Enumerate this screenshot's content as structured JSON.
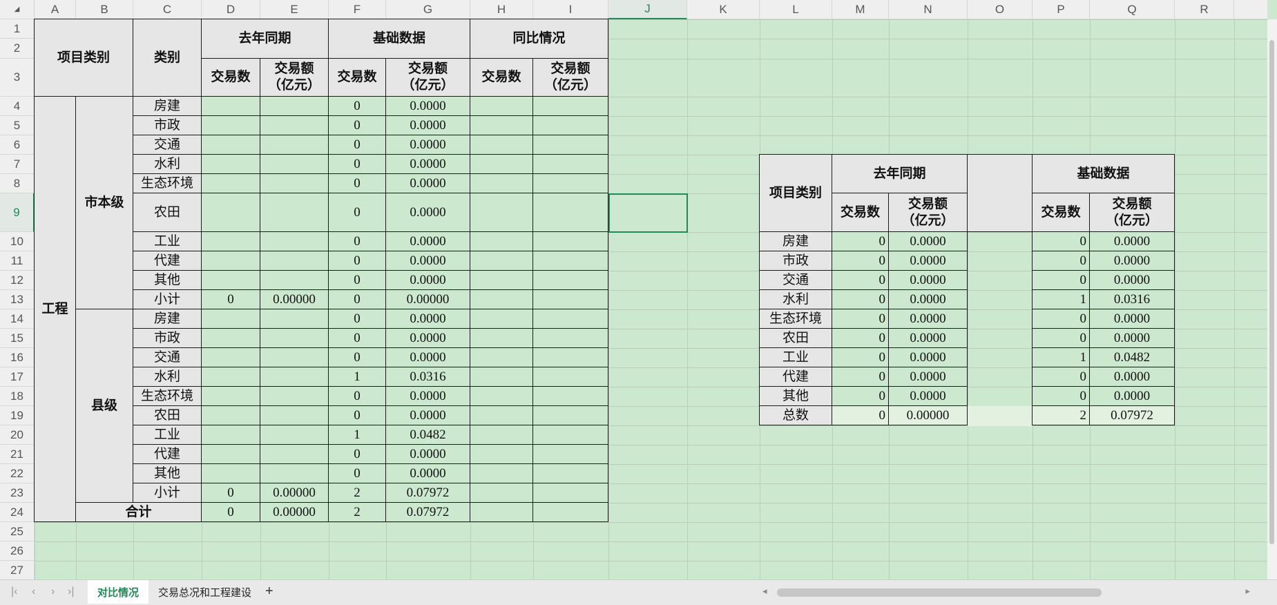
{
  "sheet": {
    "columns": [
      "A",
      "B",
      "C",
      "D",
      "E",
      "F",
      "G",
      "H",
      "I",
      "J",
      "K",
      "L",
      "M",
      "N",
      "O",
      "P",
      "Q",
      "R"
    ],
    "row_count": 27,
    "selected_cell": "J9",
    "accent_color": "#1f8a56",
    "cell_fill": "#cce8cf",
    "header_fill": "#e6e6e6",
    "cells": [
      {
        "r": "A1:B3",
        "v": "项目类别",
        "s": "hdr"
      },
      {
        "r": "C1:C3",
        "v": "类别",
        "s": "hdr"
      },
      {
        "r": "D1:E2",
        "v": "去年同期",
        "s": "hdr"
      },
      {
        "r": "F1:G2",
        "v": "基础数据",
        "s": "hdr"
      },
      {
        "r": "H1:I2",
        "v": "同比情况",
        "s": "hdr"
      },
      {
        "r": "D3",
        "v": "交易数",
        "s": "hdr"
      },
      {
        "r": "E3",
        "v": "交易额\n（亿元）",
        "s": "hdr"
      },
      {
        "r": "F3",
        "v": "交易数",
        "s": "hdr"
      },
      {
        "r": "G3",
        "v": "交易额\n（亿元）",
        "s": "hdr"
      },
      {
        "r": "H3",
        "v": "交易数",
        "s": "hdr"
      },
      {
        "r": "I3",
        "v": "交易额\n（亿元）",
        "s": "hdr"
      },
      {
        "r": "A4:A24",
        "v": "工程",
        "s": "hdr"
      },
      {
        "r": "B4:B13",
        "v": "市本级",
        "s": "hdr"
      },
      {
        "r": "B14:B23",
        "v": "县级",
        "s": "hdr"
      },
      {
        "r": "B24:C24",
        "v": "合计",
        "s": "hdr"
      },
      {
        "r": "C4",
        "v": "房建",
        "s": "lbl"
      },
      {
        "r": "C5",
        "v": "市政",
        "s": "lbl"
      },
      {
        "r": "C6",
        "v": "交通",
        "s": "lbl"
      },
      {
        "r": "C7",
        "v": "水利",
        "s": "lbl"
      },
      {
        "r": "C8",
        "v": "生态环境",
        "s": "lbl"
      },
      {
        "r": "C9",
        "v": "农田",
        "s": "lbl"
      },
      {
        "r": "C10",
        "v": "工业",
        "s": "lbl"
      },
      {
        "r": "C11",
        "v": "代建",
        "s": "lbl"
      },
      {
        "r": "C12",
        "v": "其他",
        "s": "lbl"
      },
      {
        "r": "C13",
        "v": "小计",
        "s": "lbl"
      },
      {
        "r": "C14",
        "v": "房建",
        "s": "lbl"
      },
      {
        "r": "C15",
        "v": "市政",
        "s": "lbl"
      },
      {
        "r": "C16",
        "v": "交通",
        "s": "lbl"
      },
      {
        "r": "C17",
        "v": "水利",
        "s": "lbl"
      },
      {
        "r": "C18",
        "v": "生态环境",
        "s": "lbl"
      },
      {
        "r": "C19",
        "v": "农田",
        "s": "lbl"
      },
      {
        "r": "C20",
        "v": "工业",
        "s": "lbl"
      },
      {
        "r": "C21",
        "v": "代建",
        "s": "lbl"
      },
      {
        "r": "C22",
        "v": "其他",
        "s": "lbl"
      },
      {
        "r": "C23",
        "v": "小计",
        "s": "lbl"
      },
      {
        "r": "F4",
        "v": "0"
      },
      {
        "r": "G4",
        "v": "0.0000"
      },
      {
        "r": "F5",
        "v": "0"
      },
      {
        "r": "G5",
        "v": "0.0000"
      },
      {
        "r": "F6",
        "v": "0"
      },
      {
        "r": "G6",
        "v": "0.0000"
      },
      {
        "r": "F7",
        "v": "0"
      },
      {
        "r": "G7",
        "v": "0.0000"
      },
      {
        "r": "F8",
        "v": "0"
      },
      {
        "r": "G8",
        "v": "0.0000"
      },
      {
        "r": "F9",
        "v": "0"
      },
      {
        "r": "G9",
        "v": "0.0000"
      },
      {
        "r": "F10",
        "v": "0"
      },
      {
        "r": "G10",
        "v": "0.0000"
      },
      {
        "r": "F11",
        "v": "0"
      },
      {
        "r": "G11",
        "v": "0.0000"
      },
      {
        "r": "F12",
        "v": "0"
      },
      {
        "r": "G12",
        "v": "0.0000"
      },
      {
        "r": "D13",
        "v": "0"
      },
      {
        "r": "E13",
        "v": "0.00000"
      },
      {
        "r": "F13",
        "v": "0"
      },
      {
        "r": "G13",
        "v": "0.00000"
      },
      {
        "r": "F14",
        "v": "0"
      },
      {
        "r": "G14",
        "v": "0.0000"
      },
      {
        "r": "F15",
        "v": "0"
      },
      {
        "r": "G15",
        "v": "0.0000"
      },
      {
        "r": "F16",
        "v": "0"
      },
      {
        "r": "G16",
        "v": "0.0000"
      },
      {
        "r": "F17",
        "v": "1"
      },
      {
        "r": "G17",
        "v": "0.0316"
      },
      {
        "r": "F18",
        "v": "0"
      },
      {
        "r": "G18",
        "v": "0.0000"
      },
      {
        "r": "F19",
        "v": "0"
      },
      {
        "r": "G19",
        "v": "0.0000"
      },
      {
        "r": "F20",
        "v": "1"
      },
      {
        "r": "G20",
        "v": "0.0482"
      },
      {
        "r": "F21",
        "v": "0"
      },
      {
        "r": "G21",
        "v": "0.0000"
      },
      {
        "r": "F22",
        "v": "0"
      },
      {
        "r": "G22",
        "v": "0.0000"
      },
      {
        "r": "D23",
        "v": "0"
      },
      {
        "r": "E23",
        "v": "0.00000"
      },
      {
        "r": "F23",
        "v": "2"
      },
      {
        "r": "G23",
        "v": "0.07972"
      },
      {
        "r": "D24",
        "v": "0"
      },
      {
        "r": "E24",
        "v": "0.00000"
      },
      {
        "r": "F24",
        "v": "2"
      },
      {
        "r": "G24",
        "v": "0.07972"
      },
      {
        "r": "L7:L9",
        "v": "项目类别",
        "s": "hdr"
      },
      {
        "r": "M7:N8",
        "v": "去年同期",
        "s": "hdr"
      },
      {
        "r": "O7:O9",
        "v": "",
        "s": "blank"
      },
      {
        "r": "P7:Q8",
        "v": "基础数据",
        "s": "hdr"
      },
      {
        "r": "M9",
        "v": "交易数",
        "s": "hdr"
      },
      {
        "r": "N9",
        "v": "交易额\n（亿元）",
        "s": "hdr"
      },
      {
        "r": "P9",
        "v": "交易数",
        "s": "hdr"
      },
      {
        "r": "Q9",
        "v": "交易额\n（亿元）",
        "s": "hdr"
      },
      {
        "r": "L10",
        "v": "房建",
        "s": "lbl"
      },
      {
        "r": "L11",
        "v": "市政",
        "s": "lbl"
      },
      {
        "r": "L12",
        "v": "交通",
        "s": "lbl"
      },
      {
        "r": "L13",
        "v": "水利",
        "s": "lbl"
      },
      {
        "r": "L14",
        "v": "生态环境",
        "s": "lbl"
      },
      {
        "r": "L15",
        "v": "农田",
        "s": "lbl"
      },
      {
        "r": "L16",
        "v": "工业",
        "s": "lbl"
      },
      {
        "r": "L17",
        "v": "代建",
        "s": "lbl"
      },
      {
        "r": "L18",
        "v": "其他",
        "s": "lbl"
      },
      {
        "r": "L19",
        "v": "总数",
        "s": "lbl"
      },
      {
        "r": "M10",
        "v": "0",
        "s": "right"
      },
      {
        "r": "N10",
        "v": "0.0000"
      },
      {
        "r": "P10",
        "v": "0",
        "s": "right"
      },
      {
        "r": "Q10",
        "v": "0.0000"
      },
      {
        "r": "M11",
        "v": "0",
        "s": "right"
      },
      {
        "r": "N11",
        "v": "0.0000"
      },
      {
        "r": "P11",
        "v": "0",
        "s": "right"
      },
      {
        "r": "Q11",
        "v": "0.0000"
      },
      {
        "r": "M12",
        "v": "0",
        "s": "right"
      },
      {
        "r": "N12",
        "v": "0.0000"
      },
      {
        "r": "P12",
        "v": "0",
        "s": "right"
      },
      {
        "r": "Q12",
        "v": "0.0000"
      },
      {
        "r": "M13",
        "v": "0",
        "s": "right"
      },
      {
        "r": "N13",
        "v": "0.0000"
      },
      {
        "r": "P13",
        "v": "1",
        "s": "right"
      },
      {
        "r": "Q13",
        "v": "0.0316"
      },
      {
        "r": "M14",
        "v": "0",
        "s": "right"
      },
      {
        "r": "N14",
        "v": "0.0000"
      },
      {
        "r": "P14",
        "v": "0",
        "s": "right"
      },
      {
        "r": "Q14",
        "v": "0.0000"
      },
      {
        "r": "M15",
        "v": "0",
        "s": "right"
      },
      {
        "r": "N15",
        "v": "0.0000"
      },
      {
        "r": "P15",
        "v": "0",
        "s": "right"
      },
      {
        "r": "Q15",
        "v": "0.0000"
      },
      {
        "r": "M16",
        "v": "0",
        "s": "right"
      },
      {
        "r": "N16",
        "v": "0.0000"
      },
      {
        "r": "P16",
        "v": "1",
        "s": "right"
      },
      {
        "r": "Q16",
        "v": "0.0482"
      },
      {
        "r": "M17",
        "v": "0",
        "s": "right"
      },
      {
        "r": "N17",
        "v": "0.0000"
      },
      {
        "r": "P17",
        "v": "0",
        "s": "right"
      },
      {
        "r": "Q17",
        "v": "0.0000"
      },
      {
        "r": "M18",
        "v": "0",
        "s": "right"
      },
      {
        "r": "N18",
        "v": "0.0000"
      },
      {
        "r": "P18",
        "v": "0",
        "s": "right"
      },
      {
        "r": "Q18",
        "v": "0.0000"
      },
      {
        "r": "M19",
        "v": "0",
        "s": "right tot"
      },
      {
        "r": "N19",
        "v": "0.00000",
        "s": "tot"
      },
      {
        "r": "P19",
        "v": "2",
        "s": "right tot"
      },
      {
        "r": "Q19",
        "v": "0.07972",
        "s": "tot"
      }
    ]
  },
  "tabs": {
    "items": [
      {
        "label": "对比情况",
        "active": true
      },
      {
        "label": "交易总况和工程建设",
        "active": false
      }
    ],
    "add_icon": "+",
    "nav_icons": [
      "first-sheet-icon",
      "prev-sheet-icon",
      "next-sheet-icon",
      "last-sheet-icon"
    ]
  }
}
